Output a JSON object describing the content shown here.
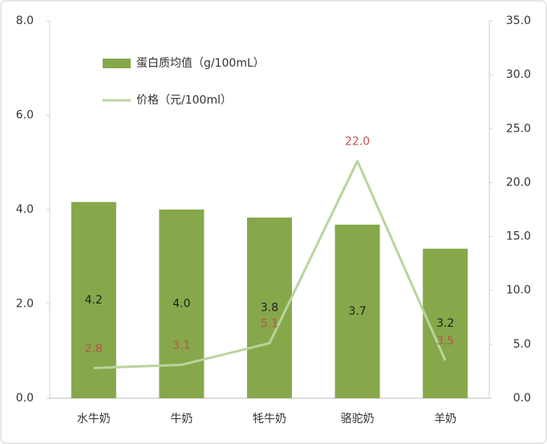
{
  "chart_data": {
    "type": "bar",
    "categories": [
      "水牛奶",
      "牛奶",
      "牦牛奶",
      "骆驼奶",
      "羊奶"
    ],
    "series": [
      {
        "name": "蛋白质均值（g/100mL）",
        "type": "bar",
        "color": "#86a84a",
        "values": [
          4.16,
          4.0,
          3.83,
          3.68,
          3.17
        ],
        "value_labels": [
          "4.2",
          "4.0",
          "3.8",
          "3.7",
          "3.2"
        ]
      },
      {
        "name": "价格（元/100ml）",
        "type": "line",
        "axis": "y2",
        "color": "#b8d49e",
        "values": [
          2.8,
          3.1,
          5.1,
          22,
          3.5
        ],
        "value_labels": [
          "2.8",
          "3.1",
          "5.1",
          "22.0",
          "3.5"
        ]
      }
    ],
    "ylim": [
      0,
      8
    ],
    "yticks": [
      {
        "value": 0,
        "label": "0.0"
      },
      {
        "value": 2,
        "label": "2.0"
      },
      {
        "value": 4,
        "label": "4.0"
      },
      {
        "value": 6,
        "label": "6.0"
      },
      {
        "value": 8,
        "label": "8.0"
      }
    ],
    "y2lim": [
      0,
      35
    ],
    "y2ticks": [
      {
        "value": 0,
        "label": "0.0"
      },
      {
        "value": 5,
        "label": "5.0"
      },
      {
        "value": 10,
        "label": "10.0"
      },
      {
        "value": 15,
        "label": "15.0"
      },
      {
        "value": 20,
        "label": "20.0"
      },
      {
        "value": 25,
        "label": "25.0"
      },
      {
        "value": 30,
        "label": "30.0"
      },
      {
        "value": 35,
        "label": "35.0"
      }
    ],
    "grid": false
  }
}
